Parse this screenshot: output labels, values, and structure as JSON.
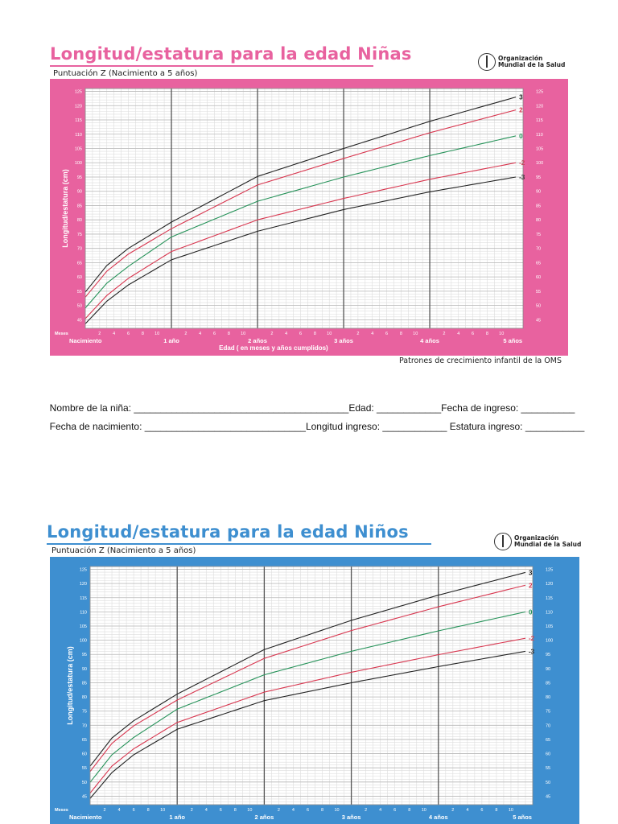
{
  "girls": {
    "title": "Longitud/estatura para la edad Niñas",
    "subtitle": "Puntuación Z (Nacimiento a 5 años)",
    "logo": {
      "line1": "Organización",
      "line2": "Mundial de la Salud",
      "icon": "who-emblem-icon"
    },
    "bg_color": "#e8629f",
    "footer": "Patrones de crecimiento infantil de la OMS"
  },
  "boys": {
    "title": "Longitud/estatura para la edad Niños",
    "subtitle": "Puntuación Z (Nacimiento a 5 años)",
    "logo": {
      "line1": "Organización",
      "line2": "Mundial de la Salud",
      "icon": "who-emblem-icon"
    },
    "bg_color": "#3e8fd0"
  },
  "form": {
    "line1": [
      "Nombre de la niña: ________________________________________",
      "Edad: ____________",
      "Fecha de ingreso: __________"
    ],
    "line2": [
      "Fecha de nacimiento: ______________________________",
      "Longitud ingreso: ____________",
      " Estatura ingreso: ___________"
    ]
  },
  "colors": {
    "grid_bg": "#ffffff",
    "grid_minor": "#dddddd",
    "grid_year": "#555555",
    "z_extreme": "#222222",
    "z_2": "#d8364f",
    "z_0": "#27935a"
  },
  "chart_data": [
    {
      "type": "line",
      "ylabel": "Longitud/estatura (cm)",
      "xlabel": "Edad ( en meses y años cumplidos)",
      "x_unit_label": "Meses",
      "xlim": [
        0,
        61
      ],
      "ylim": [
        42,
        126
      ],
      "y_ticks": [
        45,
        50,
        55,
        60,
        65,
        70,
        75,
        80,
        85,
        90,
        95,
        100,
        105,
        110,
        115,
        120,
        125
      ],
      "x_month_ticks": [
        2,
        4,
        6,
        8,
        10
      ],
      "x_year_labels": [
        "Nacimiento",
        "1 año",
        "2 años",
        "3 años",
        "4 años",
        "5 años"
      ],
      "grid": true,
      "series": [
        {
          "name": "3",
          "color": "#222222",
          "x": [
            0,
            3,
            6,
            12,
            24,
            36,
            48,
            60
          ],
          "values": [
            54.7,
            64.0,
            70.0,
            79.2,
            95.2,
            105.0,
            114.5,
            123.0
          ]
        },
        {
          "name": "2",
          "color": "#d8364f",
          "x": [
            0,
            3,
            6,
            12,
            24,
            36,
            48,
            60
          ],
          "values": [
            52.9,
            62.0,
            68.0,
            76.9,
            92.2,
            101.5,
            110.5,
            118.5
          ]
        },
        {
          "name": "0",
          "color": "#27935a",
          "x": [
            0,
            3,
            6,
            12,
            24,
            36,
            48,
            60
          ],
          "values": [
            49.1,
            57.8,
            63.7,
            74.0,
            86.5,
            95.0,
            102.5,
            109.4
          ]
        },
        {
          "name": "-2",
          "color": "#d8364f",
          "x": [
            0,
            3,
            6,
            12,
            24,
            36,
            48,
            60
          ],
          "values": [
            45.4,
            53.5,
            59.5,
            68.9,
            80.0,
            87.5,
            94.2,
            100.0
          ]
        },
        {
          "name": "-3",
          "color": "#222222",
          "x": [
            0,
            3,
            6,
            12,
            24,
            36,
            48,
            60
          ],
          "values": [
            43.6,
            51.5,
            57.2,
            66.0,
            76.0,
            83.6,
            89.8,
            95.0
          ]
        }
      ]
    },
    {
      "type": "line",
      "ylabel": "Longitud/estatura (cm)",
      "xlabel": "",
      "x_unit_label": "Meses",
      "xlim": [
        0,
        61
      ],
      "ylim": [
        42,
        126
      ],
      "y_ticks": [
        45,
        50,
        55,
        60,
        65,
        70,
        75,
        80,
        85,
        90,
        95,
        100,
        105,
        110,
        115,
        120,
        125
      ],
      "x_month_ticks": [
        2,
        4,
        6,
        8,
        10
      ],
      "x_year_labels": [
        "Nacimiento",
        "1 año",
        "2 años",
        "3 años",
        "4 años",
        "5 años"
      ],
      "grid": true,
      "series": [
        {
          "name": "3",
          "color": "#222222",
          "x": [
            0,
            3,
            6,
            12,
            24,
            36,
            48,
            60
          ],
          "values": [
            55.6,
            65.5,
            71.6,
            81.0,
            96.7,
            107.0,
            115.9,
            123.9
          ]
        },
        {
          "name": "2",
          "color": "#d8364f",
          "x": [
            0,
            3,
            6,
            12,
            24,
            36,
            48,
            60
          ],
          "values": [
            53.7,
            63.6,
            69.8,
            78.9,
            93.6,
            103.4,
            111.8,
            119.4
          ]
        },
        {
          "name": "0",
          "color": "#27935a",
          "x": [
            0,
            3,
            6,
            12,
            24,
            36,
            48,
            60
          ],
          "values": [
            49.9,
            59.6,
            65.7,
            75.7,
            87.8,
            96.1,
            103.3,
            110.0
          ]
        },
        {
          "name": "-2",
          "color": "#d8364f",
          "x": [
            0,
            3,
            6,
            12,
            24,
            36,
            48,
            60
          ],
          "values": [
            46.1,
            55.6,
            61.7,
            71.0,
            81.7,
            88.7,
            94.9,
            100.7
          ]
        },
        {
          "name": "-3",
          "color": "#222222",
          "x": [
            0,
            3,
            6,
            12,
            24,
            36,
            48,
            60
          ],
          "values": [
            44.2,
            53.3,
            59.6,
            68.6,
            78.7,
            85.0,
            90.7,
            96.1
          ]
        }
      ]
    }
  ]
}
